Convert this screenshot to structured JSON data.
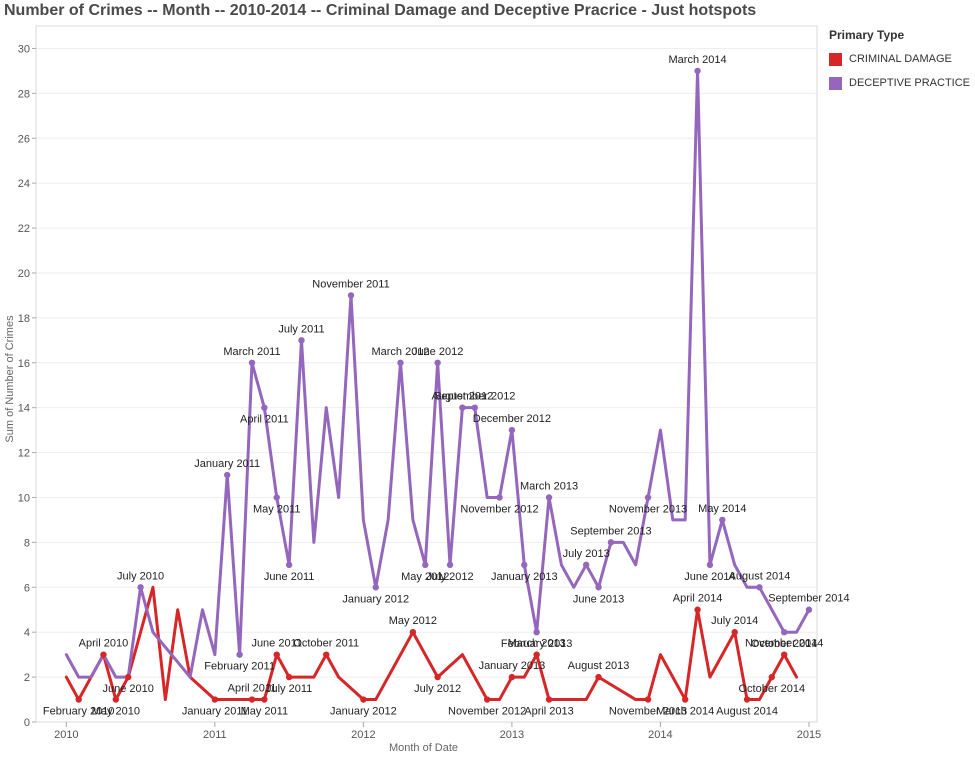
{
  "title": "Number of Crimes -- Month -- 2010-2014 -- Criminal Damage and Deceptive Pracrice  - Just hotspots",
  "legend": {
    "title": "Primary Type",
    "items": [
      {
        "label": "CRIMINAL DAMAGE",
        "color": "#d62728"
      },
      {
        "label": "DECEPTIVE PRACTICE",
        "color": "#9467bd"
      }
    ]
  },
  "chart_data": {
    "type": "line",
    "title": "Number of Crimes -- Month -- 2010-2014 -- Criminal Damage and Deceptive Pracrice  - Just hotspots",
    "xlabel": "Month of Date",
    "ylabel": "Sum of Number of Crimes",
    "xlim": [
      "2009-10",
      "2015-02"
    ],
    "ylim": [
      0,
      31
    ],
    "x_ticks": [
      "2010",
      "2011",
      "2012",
      "2013",
      "2014",
      "2015"
    ],
    "y_ticks": [
      0,
      2,
      4,
      6,
      8,
      10,
      12,
      14,
      16,
      18,
      20,
      22,
      24,
      26,
      28,
      30
    ],
    "grid": "horizontal",
    "legend_position": "top-right",
    "series": [
      {
        "name": "CRIMINAL DAMAGE",
        "color": "#d62728",
        "points": [
          {
            "x": "2010-01",
            "y": 2
          },
          {
            "x": "2010-02",
            "y": 1,
            "label": "February 2010"
          },
          {
            "x": "2010-04",
            "y": 3,
            "label": "April 2010"
          },
          {
            "x": "2010-05",
            "y": 1,
            "label": "May 2010"
          },
          {
            "x": "2010-06",
            "y": 2,
            "label": "June 2010"
          },
          {
            "x": "2010-08",
            "y": 6
          },
          {
            "x": "2010-09",
            "y": 1
          },
          {
            "x": "2010-10",
            "y": 5
          },
          {
            "x": "2010-11",
            "y": 2
          },
          {
            "x": "2011-01",
            "y": 1,
            "label": "January 2011"
          },
          {
            "x": "2011-03",
            "y": 1
          },
          {
            "x": "2011-04",
            "y": 1,
            "label": "April 2011"
          },
          {
            "x": "2011-05",
            "y": 1,
            "label": "May 2011"
          },
          {
            "x": "2011-06",
            "y": 3,
            "label": "June 2011"
          },
          {
            "x": "2011-07",
            "y": 2,
            "label": "July 2011"
          },
          {
            "x": "2011-09",
            "y": 2
          },
          {
            "x": "2011-10",
            "y": 3,
            "label": "October 2011"
          },
          {
            "x": "2011-11",
            "y": 2
          },
          {
            "x": "2012-01",
            "y": 1,
            "label": "January 2012"
          },
          {
            "x": "2012-02",
            "y": 1
          },
          {
            "x": "2012-05",
            "y": 4,
            "label": "May 2012"
          },
          {
            "x": "2012-07",
            "y": 2,
            "label": "July 2012"
          },
          {
            "x": "2012-09",
            "y": 3
          },
          {
            "x": "2012-11",
            "y": 1,
            "label": "November 2012"
          },
          {
            "x": "2012-12",
            "y": 1
          },
          {
            "x": "2013-01",
            "y": 2,
            "label": "January 2013"
          },
          {
            "x": "2013-02",
            "y": 2
          },
          {
            "x": "2013-03",
            "y": 3,
            "label": "March 2013"
          },
          {
            "x": "2013-04",
            "y": 1,
            "label": "April 2013"
          },
          {
            "x": "2013-07",
            "y": 1
          },
          {
            "x": "2013-08",
            "y": 2,
            "label": "August 2013"
          },
          {
            "x": "2013-11",
            "y": 1
          },
          {
            "x": "2013-12",
            "y": 1,
            "label": "November 2013"
          },
          {
            "x": "2014-01",
            "y": 3
          },
          {
            "x": "2014-03",
            "y": 1,
            "label": "March 2014"
          },
          {
            "x": "2014-04",
            "y": 5,
            "label": "April 2014"
          },
          {
            "x": "2014-05",
            "y": 2
          },
          {
            "x": "2014-07",
            "y": 4,
            "label": "July 2014"
          },
          {
            "x": "2014-08",
            "y": 1,
            "label": "August 2014"
          },
          {
            "x": "2014-09",
            "y": 1
          },
          {
            "x": "2014-10",
            "y": 2,
            "label": "October 2014"
          },
          {
            "x": "2014-11",
            "y": 3,
            "label": "November 2014"
          },
          {
            "x": "2014-12",
            "y": 2
          }
        ]
      },
      {
        "name": "DECEPTIVE PRACTICE",
        "color": "#9467bd",
        "points": [
          {
            "x": "2010-01",
            "y": 3
          },
          {
            "x": "2010-02",
            "y": 2
          },
          {
            "x": "2010-03",
            "y": 2
          },
          {
            "x": "2010-04",
            "y": 3
          },
          {
            "x": "2010-05",
            "y": 2
          },
          {
            "x": "2010-06",
            "y": 2
          },
          {
            "x": "2010-07",
            "y": 6,
            "label": "July 2010"
          },
          {
            "x": "2010-08",
            "y": 4
          },
          {
            "x": "2010-11",
            "y": 2
          },
          {
            "x": "2010-12",
            "y": 5
          },
          {
            "x": "2011-01",
            "y": 3
          },
          {
            "x": "2011-02",
            "y": 11,
            "label": "January 2011"
          },
          {
            "x": "2011-03",
            "y": 3,
            "label": "February 2011"
          },
          {
            "x": "2011-04",
            "y": 16,
            "label": "March 2011"
          },
          {
            "x": "2011-05",
            "y": 14,
            "label": "April 2011"
          },
          {
            "x": "2011-06",
            "y": 10,
            "label": "May 2011"
          },
          {
            "x": "2011-07",
            "y": 7,
            "label": "June 2011"
          },
          {
            "x": "2011-08",
            "y": 17,
            "label": "July 2011"
          },
          {
            "x": "2011-09",
            "y": 8
          },
          {
            "x": "2011-10",
            "y": 14
          },
          {
            "x": "2011-11",
            "y": 10
          },
          {
            "x": "2011-12",
            "y": 19,
            "label": "November 2011"
          },
          {
            "x": "2012-01",
            "y": 9
          },
          {
            "x": "2012-02",
            "y": 6,
            "label": "January 2012"
          },
          {
            "x": "2012-03",
            "y": 9
          },
          {
            "x": "2012-04",
            "y": 16,
            "label": "March 2012"
          },
          {
            "x": "2012-05",
            "y": 9
          },
          {
            "x": "2012-06",
            "y": 7,
            "label": "May 2012"
          },
          {
            "x": "2012-07",
            "y": 16,
            "label": "June 2012"
          },
          {
            "x": "2012-08",
            "y": 7,
            "label": "July 2012"
          },
          {
            "x": "2012-09",
            "y": 14,
            "label": "August 2012"
          },
          {
            "x": "2012-10",
            "y": 14,
            "label": "September 2012"
          },
          {
            "x": "2012-11",
            "y": 10
          },
          {
            "x": "2012-12",
            "y": 10,
            "label": "November 2012"
          },
          {
            "x": "2013-01",
            "y": 13,
            "label": "December 2012"
          },
          {
            "x": "2013-02",
            "y": 7,
            "label": "January 2013"
          },
          {
            "x": "2013-03",
            "y": 4,
            "label": "February 2013"
          },
          {
            "x": "2013-04",
            "y": 10,
            "label": "March 2013"
          },
          {
            "x": "2013-05",
            "y": 7
          },
          {
            "x": "2013-06",
            "y": 6
          },
          {
            "x": "2013-07",
            "y": 7,
            "label": "July 2013"
          },
          {
            "x": "2013-08",
            "y": 6,
            "label": "June 2013"
          },
          {
            "x": "2013-09",
            "y": 8,
            "label": "September 2013"
          },
          {
            "x": "2013-10",
            "y": 8
          },
          {
            "x": "2013-11",
            "y": 7
          },
          {
            "x": "2013-12",
            "y": 10,
            "label": "November 2013"
          },
          {
            "x": "2014-01",
            "y": 13
          },
          {
            "x": "2014-02",
            "y": 9
          },
          {
            "x": "2014-03",
            "y": 9
          },
          {
            "x": "2014-04",
            "y": 29,
            "label": "March 2014"
          },
          {
            "x": "2014-05",
            "y": 7,
            "label": "June 2014"
          },
          {
            "x": "2014-06",
            "y": 9,
            "label": "May 2014"
          },
          {
            "x": "2014-07",
            "y": 7
          },
          {
            "x": "2014-08",
            "y": 6
          },
          {
            "x": "2014-09",
            "y": 6,
            "label": "August 2014"
          },
          {
            "x": "2014-10",
            "y": 5
          },
          {
            "x": "2014-11",
            "y": 4,
            "label": "October 2014"
          },
          {
            "x": "2014-12",
            "y": 4
          },
          {
            "x": "2015-01",
            "y": 5,
            "label": "September 2014"
          }
        ]
      }
    ]
  }
}
